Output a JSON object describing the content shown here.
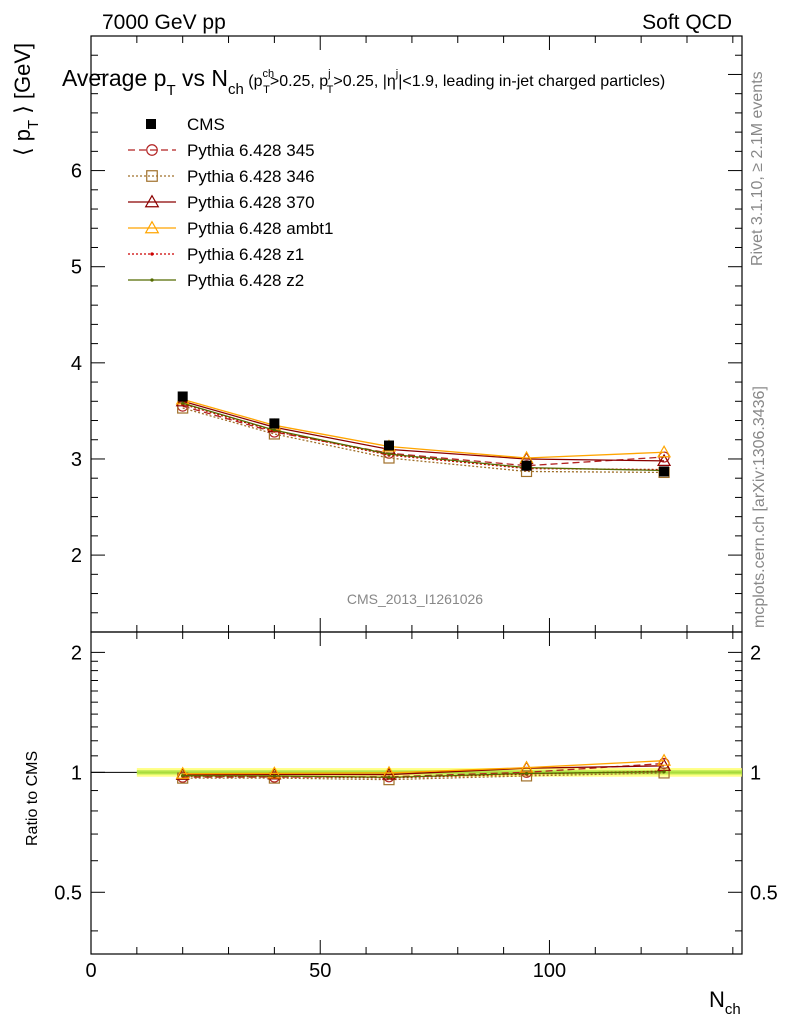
{
  "header": {
    "left": "7000 GeV pp",
    "right": "Soft QCD"
  },
  "side": {
    "rivet": "Rivet 3.1.10, ≥ 2.1M events",
    "mcplots": "mcplots.cern.ch [arXiv:1306.3436]"
  },
  "title": {
    "main_pre": "Average p",
    "main_sub": "T",
    "main_mid": " vs N",
    "main_sub2": "ch",
    "cut1_pre": " (p",
    "cut1_sup": "ch",
    "cut1_sub": "T",
    "cut1_post": ">0.25, p",
    "cut2_sup": "j",
    "cut2_sub": "T",
    "cut2_post": ">0.25, |η",
    "cut3_sup": "j",
    "cut3_post": "|<1.9, leading in-jet charged particles)"
  },
  "watermark": "CMS_2013_I1261026",
  "axes": {
    "ylabel_top_pre": "⟨ p",
    "ylabel_top_sub": "T",
    "ylabel_top_post": " ⟩ [GeV]",
    "ylabel_bottom": "Ratio to CMS",
    "xlabel_main": "N",
    "xlabel_sub": "ch"
  },
  "colors": {
    "cms": "#000000",
    "p345": "#b22222",
    "p346": "#a0702a",
    "p370": "#8b0000",
    "ambt1": "#ffa500",
    "z1": "#cc0000",
    "z2": "#556b00",
    "band_outer": "#ffff66",
    "band_inner": "#99dd33"
  },
  "chart_data": {
    "type": "line",
    "x": [
      20,
      40,
      65,
      95,
      125
    ],
    "xlabel": "N_ch",
    "ylabel": "⟨ p_T ⟩ [GeV]",
    "xlim": [
      0,
      142
    ],
    "ylim": [
      1.2,
      7.4
    ],
    "yticks": [
      2,
      3,
      4,
      5,
      6
    ],
    "xticks": [
      0,
      50,
      100
    ],
    "ratio_ylim": [
      0.35,
      2.25
    ],
    "ratio_yticks": [
      0.5,
      1,
      2
    ],
    "legend_position": "top-left",
    "series": [
      {
        "name": "CMS",
        "style": "data",
        "values": [
          3.65,
          3.37,
          3.14,
          2.93,
          2.87
        ]
      },
      {
        "name": "Pythia 6.428 345",
        "style": "dashed",
        "marker": "circle",
        "values": [
          3.55,
          3.28,
          3.06,
          2.93,
          3.02
        ]
      },
      {
        "name": "Pythia 6.428 346",
        "style": "dotted",
        "marker": "square",
        "values": [
          3.53,
          3.26,
          3.01,
          2.87,
          2.86
        ]
      },
      {
        "name": "Pythia 6.428 370",
        "style": "solid",
        "marker": "triangle",
        "values": [
          3.6,
          3.33,
          3.1,
          3.0,
          2.98
        ]
      },
      {
        "name": "Pythia 6.428 ambt1",
        "style": "solid",
        "marker": "triangle",
        "values": [
          3.62,
          3.35,
          3.13,
          3.01,
          3.07
        ]
      },
      {
        "name": "Pythia 6.428 z1",
        "style": "dotted",
        "marker": "dot",
        "values": [
          3.57,
          3.29,
          3.04,
          2.9,
          2.89
        ]
      },
      {
        "name": "Pythia 6.428 z2",
        "style": "solid",
        "marker": "dot",
        "values": [
          3.58,
          3.3,
          3.05,
          2.91,
          2.88
        ]
      }
    ]
  }
}
